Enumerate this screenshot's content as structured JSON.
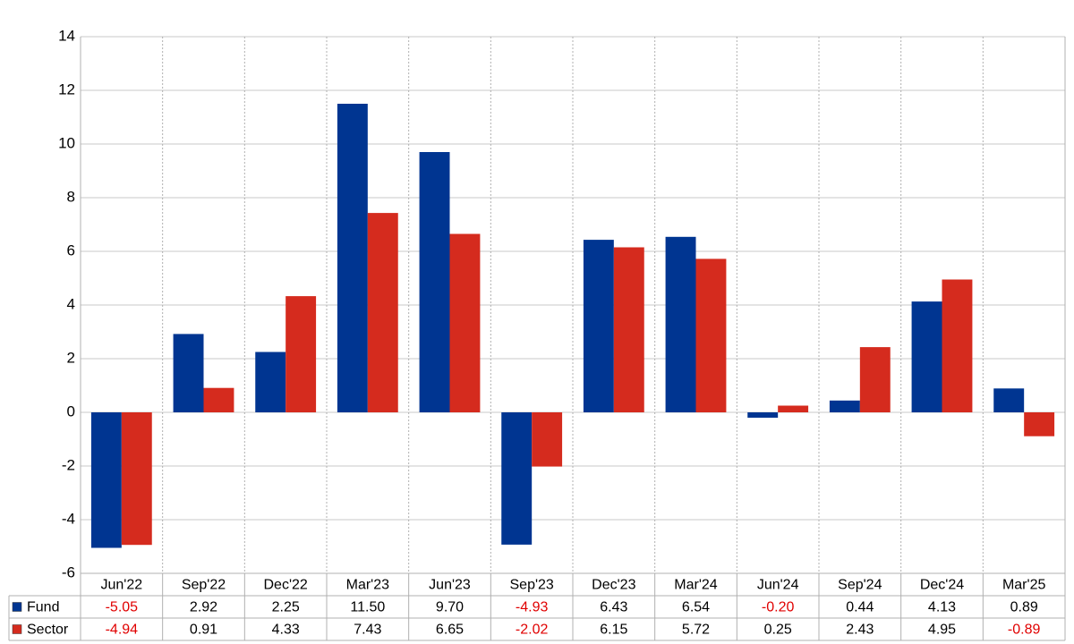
{
  "chart_data": {
    "type": "bar",
    "categories": [
      "Jun'22",
      "Sep'22",
      "Dec'22",
      "Mar'23",
      "Jun'23",
      "Sep'23",
      "Dec'23",
      "Mar'24",
      "Jun'24",
      "Sep'24",
      "Dec'24",
      "Mar'25"
    ],
    "series": [
      {
        "name": "Fund",
        "color": "#003591",
        "values": [
          -5.05,
          2.92,
          2.25,
          11.5,
          9.7,
          -4.93,
          6.43,
          6.54,
          -0.2,
          0.44,
          4.13,
          0.89
        ],
        "value_labels": [
          "-5.05",
          "2.92",
          "2.25",
          "11.50",
          "9.70",
          "-4.93",
          "6.43",
          "6.54",
          "-0.20",
          "0.44",
          "4.13",
          "0.89"
        ]
      },
      {
        "name": "Sector",
        "color": "#d52b1e",
        "values": [
          -4.94,
          0.91,
          4.33,
          7.43,
          6.65,
          -2.02,
          6.15,
          5.72,
          0.25,
          2.43,
          4.95,
          -0.89
        ],
        "value_labels": [
          "-4.94",
          "0.91",
          "4.33",
          "7.43",
          "6.65",
          "-2.02",
          "6.15",
          "5.72",
          "0.25",
          "2.43",
          "4.95",
          "-0.89"
        ]
      }
    ],
    "ylim": [
      -6,
      14
    ],
    "yticks": [
      -6,
      -4,
      -2,
      0,
      2,
      4,
      6,
      8,
      10,
      12,
      14
    ],
    "grid": true,
    "negative_color": "#e00000"
  }
}
